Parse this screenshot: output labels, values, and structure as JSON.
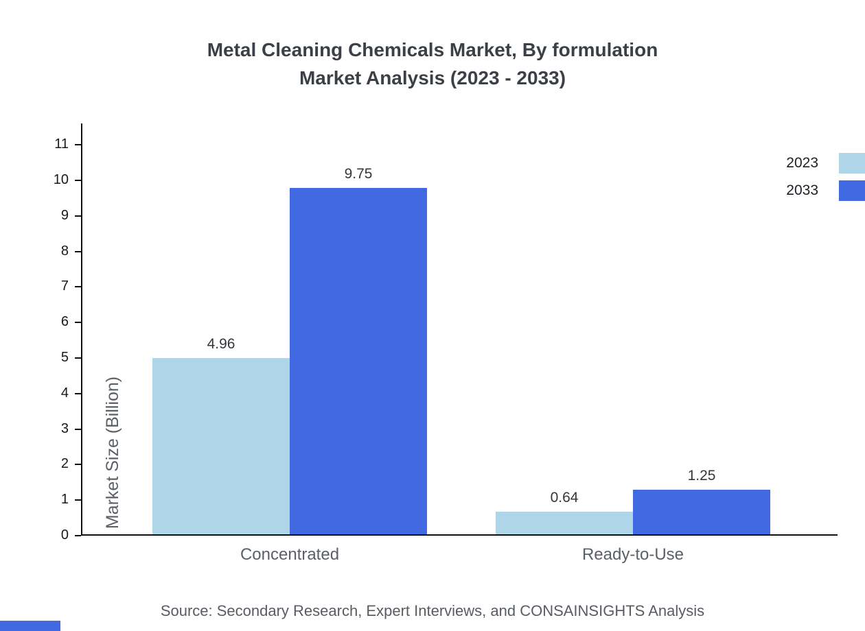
{
  "chart_data": {
    "type": "bar",
    "title": "Metal Cleaning Chemicals Market, By formulation",
    "subtitle": "Market Analysis (2023 - 2033)",
    "categories": [
      "Concentrated",
      "Ready-to-Use"
    ],
    "series": [
      {
        "name": "2023",
        "color": "#aed6e8",
        "values": [
          4.96,
          0.64
        ]
      },
      {
        "name": "2033",
        "color": "#4169e1",
        "values": [
          9.75,
          1.25
        ]
      }
    ],
    "value_labels": [
      "4.96",
      "9.75",
      "0.64",
      "1.25"
    ],
    "xlabel": "",
    "ylabel": "Market Size (Billion)",
    "ylim": [
      0,
      11.6
    ],
    "yticks": [
      0,
      1,
      2,
      3,
      4,
      5,
      6,
      7,
      8,
      9,
      10,
      11
    ],
    "grid": false,
    "legend_position": "top-right"
  },
  "footer": {
    "source": "Source: Secondary Research, Expert Interviews, and CONSAINSIGHTS Analysis"
  },
  "brand": {
    "accent_color": "#4169e1"
  }
}
